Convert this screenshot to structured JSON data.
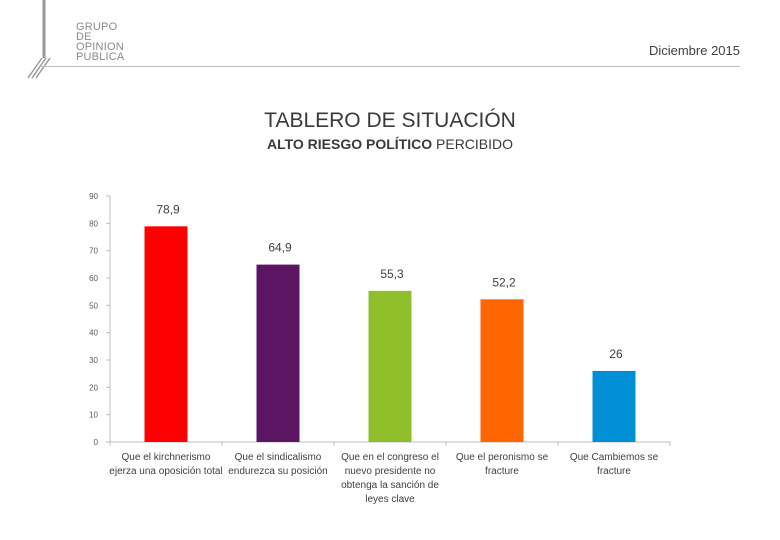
{
  "header": {
    "logo_lines": [
      "GRUPO",
      "DE",
      "OPINION",
      "PUBLICA"
    ],
    "date": "Diciembre 2015"
  },
  "chart_data": {
    "type": "bar",
    "title": "TABLERO DE SITUACIÓN",
    "subtitle_bold": "ALTO RIESGO POLÍTICO",
    "subtitle_rest": " PERCIBIDO",
    "categories": [
      "Que el kirchnerismo ejerza una oposición total",
      "Que el sindicalismo endurezca su posición",
      "Que en el congreso el nuevo presidente no obtenga la sanción de leyes clave",
      "Que el peronismo se fracture",
      "Que Cambiemos se fracture"
    ],
    "values": [
      78.9,
      64.9,
      55.3,
      52.2,
      26
    ],
    "value_labels": [
      "78,9",
      "64,9",
      "55,3",
      "52,2",
      "26"
    ],
    "colors": [
      "#ff0000",
      "#5b1563",
      "#8fc02c",
      "#ff6600",
      "#008fd5"
    ],
    "ylim": [
      0,
      90
    ],
    "yticks": [
      0,
      10,
      20,
      30,
      40,
      50,
      60,
      70,
      80,
      90
    ],
    "grid": false,
    "legend": "none"
  }
}
